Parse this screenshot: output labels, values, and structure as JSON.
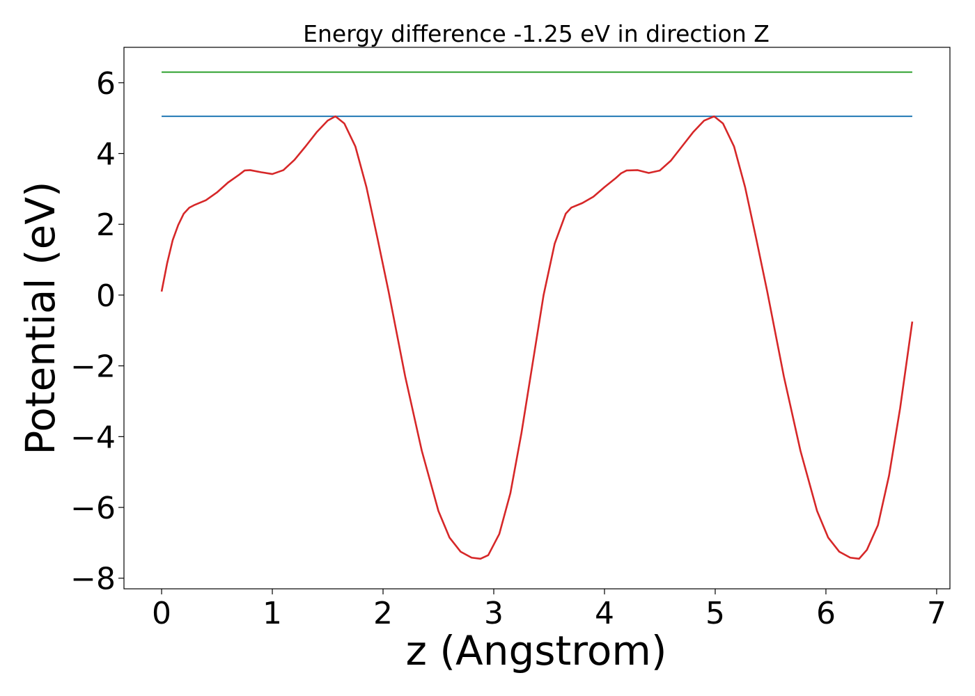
{
  "chart_data": {
    "type": "line",
    "title": "Energy difference -1.25 eV in direction Z",
    "xlabel": "z (Angstrom)",
    "ylabel": "Potential (eV)",
    "xlim": [
      -0.34,
      7.12
    ],
    "ylim": [
      -8.3,
      7.0
    ],
    "xticks": [
      0,
      1,
      2,
      3,
      4,
      5,
      6,
      7
    ],
    "xtick_labels": [
      "0",
      "1",
      "2",
      "3",
      "4",
      "5",
      "6",
      "7"
    ],
    "yticks": [
      6,
      4,
      2,
      0,
      -2,
      -4,
      -6,
      -8
    ],
    "ytick_labels": [
      "6",
      "4",
      "2",
      "0",
      "−2",
      "−4",
      "−6",
      "−8"
    ],
    "grid": false,
    "series": [
      {
        "color": "#2ca02c",
        "x": [
          0,
          6.78
        ],
        "y": [
          6.3,
          6.3
        ]
      },
      {
        "color": "#1f77b4",
        "x": [
          0,
          6.78
        ],
        "y": [
          5.05,
          5.05
        ]
      },
      {
        "color": "#d62728",
        "x": [
          0,
          0.05,
          0.1,
          0.15,
          0.2,
          0.25,
          0.3,
          0.4,
          0.5,
          0.6,
          0.7,
          0.75,
          0.8,
          0.9,
          1.0,
          1.1,
          1.2,
          1.3,
          1.4,
          1.5,
          1.57,
          1.65,
          1.75,
          1.85,
          1.95,
          2.05,
          2.2,
          2.35,
          2.5,
          2.6,
          2.7,
          2.8,
          2.88,
          2.95,
          3.05,
          3.15,
          3.25,
          3.35,
          3.45,
          3.55,
          3.65,
          3.7,
          3.8,
          3.9,
          4.0,
          4.1,
          4.15,
          4.2,
          4.3,
          4.4,
          4.5,
          4.6,
          4.7,
          4.8,
          4.9,
          4.99,
          5.07,
          5.17,
          5.27,
          5.37,
          5.47,
          5.62,
          5.77,
          5.92,
          6.02,
          6.12,
          6.22,
          6.3,
          6.37,
          6.47,
          6.57,
          6.67,
          6.78
        ],
        "y": [
          0.1,
          0.9,
          1.55,
          1.98,
          2.3,
          2.47,
          2.55,
          2.68,
          2.9,
          3.18,
          3.4,
          3.52,
          3.53,
          3.47,
          3.42,
          3.53,
          3.82,
          4.2,
          4.6,
          4.93,
          5.05,
          4.85,
          4.2,
          3.05,
          1.6,
          0.1,
          -2.3,
          -4.4,
          -6.1,
          -6.85,
          -7.25,
          -7.42,
          -7.45,
          -7.35,
          -6.75,
          -5.6,
          -3.9,
          -1.95,
          0.0,
          1.45,
          2.3,
          2.47,
          2.6,
          2.78,
          3.05,
          3.3,
          3.44,
          3.52,
          3.53,
          3.45,
          3.52,
          3.8,
          4.2,
          4.6,
          4.93,
          5.05,
          4.85,
          4.2,
          3.05,
          1.6,
          0.1,
          -2.3,
          -4.4,
          -6.1,
          -6.85,
          -7.25,
          -7.42,
          -7.45,
          -7.2,
          -6.5,
          -5.1,
          -3.2,
          -0.75
        ]
      }
    ]
  }
}
